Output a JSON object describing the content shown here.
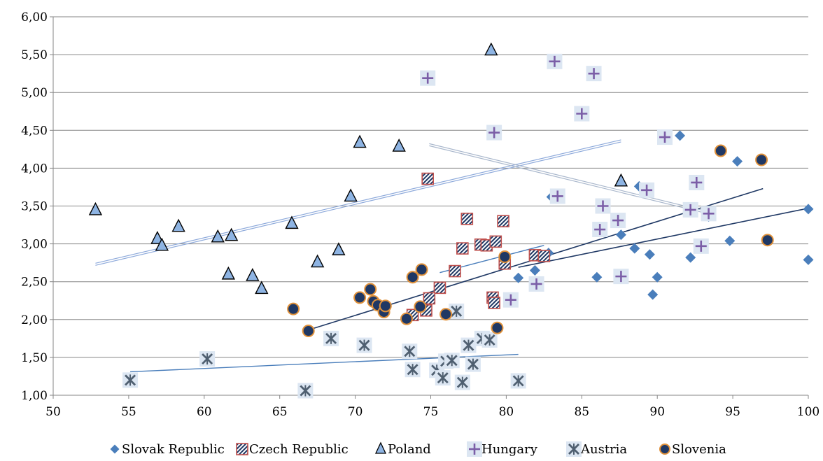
{
  "chart_data": {
    "type": "scatter",
    "title": "",
    "xlabel": "",
    "ylabel": "",
    "xlim": [
      50,
      100
    ],
    "ylim": [
      1.0,
      6.0
    ],
    "x_ticks": [
      "50",
      "55",
      "60",
      "65",
      "70",
      "75",
      "80",
      "85",
      "90",
      "95",
      "100"
    ],
    "y_ticks": [
      "1,00",
      "1,50",
      "2,00",
      "2,50",
      "3,00",
      "3,50",
      "4,00",
      "4,50",
      "5,00",
      "5,50",
      "6,00"
    ],
    "grid": "horizontal",
    "legend_position": "bottom",
    "series": [
      {
        "name": "Slovak Republic",
        "marker": "diamond",
        "color": "#4a7ebb",
        "points": [
          [
            80.8,
            2.55
          ],
          [
            81.9,
            2.65
          ],
          [
            86.0,
            2.56
          ],
          [
            87.6,
            3.12
          ],
          [
            88.5,
            2.94
          ],
          [
            88.8,
            3.76
          ],
          [
            89.5,
            2.86
          ],
          [
            89.7,
            2.33
          ],
          [
            90.0,
            2.56
          ],
          [
            91.5,
            4.43
          ],
          [
            92.2,
            2.82
          ],
          [
            93.4,
            3.36
          ],
          [
            94.8,
            3.04
          ],
          [
            95.3,
            4.09
          ],
          [
            100.0,
            3.46
          ],
          [
            100.0,
            2.79
          ],
          [
            82.8,
            2.88
          ],
          [
            83.0,
            3.62
          ]
        ],
        "trend": [
          [
            80.8,
            2.69
          ],
          [
            100.0,
            3.47
          ]
        ]
      },
      {
        "name": "Czech Republic",
        "marker": "hatched-square",
        "color": "#c0504d",
        "points": [
          [
            74.8,
            3.86
          ],
          [
            77.4,
            3.33
          ],
          [
            79.8,
            3.3
          ],
          [
            77.1,
            2.94
          ],
          [
            76.6,
            2.64
          ],
          [
            75.6,
            2.42
          ],
          [
            74.9,
            2.28
          ],
          [
            73.8,
            2.06
          ],
          [
            74.7,
            2.12
          ],
          [
            78.3,
            2.99
          ],
          [
            78.7,
            2.98
          ],
          [
            79.3,
            3.03
          ],
          [
            79.1,
            2.29
          ],
          [
            79.2,
            2.22
          ],
          [
            79.9,
            2.74
          ],
          [
            81.9,
            2.85
          ],
          [
            82.5,
            2.84
          ]
        ],
        "trend": [
          [
            75.6,
            2.62
          ],
          [
            82.5,
            2.98
          ]
        ]
      },
      {
        "name": "Poland",
        "marker": "triangle",
        "color": "#8eb4e3",
        "points": [
          [
            52.8,
            3.45
          ],
          [
            56.9,
            3.07
          ],
          [
            57.2,
            2.98
          ],
          [
            58.3,
            3.23
          ],
          [
            60.9,
            3.09
          ],
          [
            61.8,
            3.11
          ],
          [
            61.6,
            2.6
          ],
          [
            63.2,
            2.58
          ],
          [
            63.8,
            2.41
          ],
          [
            65.8,
            3.27
          ],
          [
            67.5,
            2.76
          ],
          [
            68.9,
            2.92
          ],
          [
            69.7,
            3.63
          ],
          [
            70.3,
            4.34
          ],
          [
            72.9,
            4.29
          ],
          [
            79.0,
            5.56
          ],
          [
            87.6,
            3.83
          ]
        ],
        "trend": [
          [
            52.8,
            2.73
          ],
          [
            87.6,
            4.36
          ]
        ]
      },
      {
        "name": "Hungary",
        "marker": "plus",
        "color": "#7b5ea7",
        "points": [
          [
            74.8,
            5.19
          ],
          [
            83.2,
            5.41
          ],
          [
            85.8,
            5.25
          ],
          [
            85.0,
            4.72
          ],
          [
            79.2,
            4.47
          ],
          [
            90.5,
            4.41
          ],
          [
            83.4,
            3.63
          ],
          [
            89.3,
            3.71
          ],
          [
            92.6,
            3.81
          ],
          [
            86.4,
            3.5
          ],
          [
            92.2,
            3.45
          ],
          [
            93.4,
            3.4
          ],
          [
            86.2,
            3.19
          ],
          [
            87.4,
            3.31
          ],
          [
            92.9,
            2.97
          ],
          [
            87.6,
            2.57
          ],
          [
            82.0,
            2.47
          ],
          [
            80.3,
            2.26
          ]
        ],
        "trend": [
          [
            74.9,
            4.31
          ],
          [
            93.2,
            3.42
          ]
        ]
      },
      {
        "name": "Austria",
        "marker": "star",
        "color": "#4f5f70",
        "points": [
          [
            55.1,
            1.2
          ],
          [
            60.2,
            1.48
          ],
          [
            66.7,
            1.06
          ],
          [
            68.4,
            1.75
          ],
          [
            70.6,
            1.66
          ],
          [
            73.6,
            1.58
          ],
          [
            73.8,
            1.34
          ],
          [
            75.4,
            1.33
          ],
          [
            75.8,
            1.23
          ],
          [
            76.0,
            1.45
          ],
          [
            76.4,
            1.46
          ],
          [
            76.7,
            2.11
          ],
          [
            77.1,
            1.17
          ],
          [
            77.5,
            1.66
          ],
          [
            77.8,
            1.41
          ],
          [
            78.4,
            1.75
          ],
          [
            78.9,
            1.73
          ],
          [
            80.8,
            1.19
          ]
        ],
        "trend": [
          [
            55.1,
            1.31
          ],
          [
            80.8,
            1.54
          ]
        ]
      },
      {
        "name": "Slovenia",
        "marker": "circle",
        "color": "#1f3864",
        "points": [
          [
            65.9,
            2.14
          ],
          [
            66.9,
            1.85
          ],
          [
            70.3,
            2.29
          ],
          [
            71.0,
            2.4
          ],
          [
            71.2,
            2.24
          ],
          [
            71.5,
            2.19
          ],
          [
            71.9,
            2.1
          ],
          [
            72.0,
            2.18
          ],
          [
            73.4,
            2.01
          ],
          [
            73.8,
            2.56
          ],
          [
            74.3,
            2.17
          ],
          [
            74.4,
            2.66
          ],
          [
            76.0,
            2.07
          ],
          [
            79.4,
            1.89
          ],
          [
            79.9,
            2.83
          ],
          [
            94.2,
            4.23
          ],
          [
            96.9,
            4.11
          ],
          [
            97.3,
            3.05
          ]
        ],
        "trend": [
          [
            66.7,
            1.85
          ],
          [
            97.0,
            3.73
          ]
        ]
      }
    ]
  }
}
